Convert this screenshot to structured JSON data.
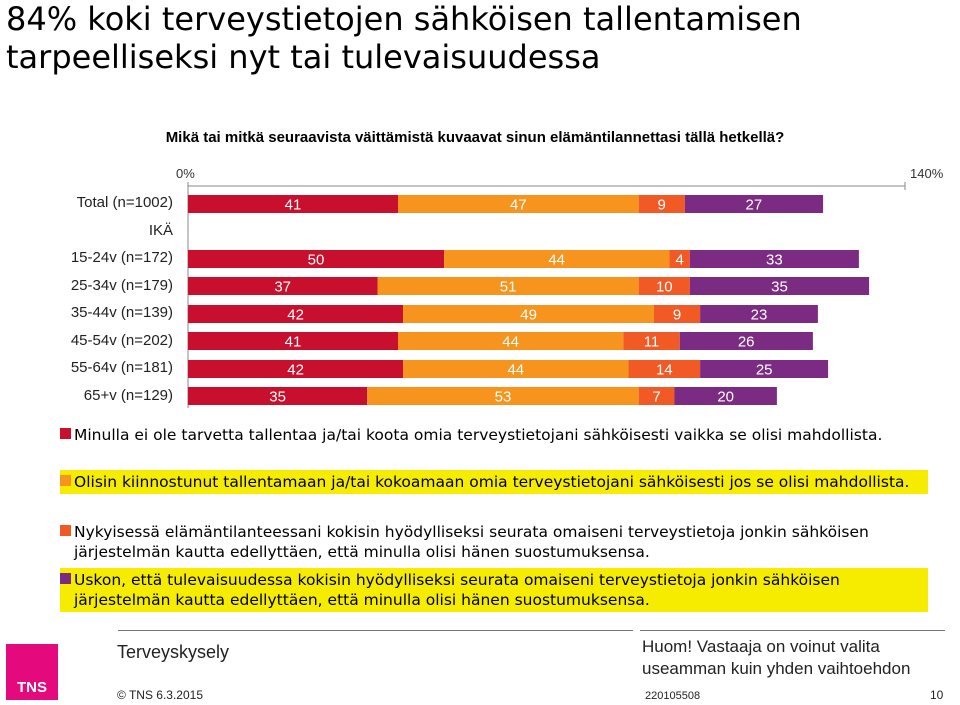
{
  "title": "84% koki terveystietojen sähköisen tallentamisen tarpeelliseksi nyt tai tulevaisuudessa",
  "question": "Mikä tai mitkä seuraavista väittämistä kuvaavat sinun elämäntilannettasi tällä hetkellä?",
  "chart_data": {
    "type": "bar",
    "orientation": "horizontal",
    "stacked": true,
    "axis_min_label": "0%",
    "axis_max_label": "140%",
    "xlim": [
      0,
      140
    ],
    "group_label": "IKÄ",
    "categories": [
      "Total (n=1002)",
      "15-24v (n=172)",
      "25-34v (n=179)",
      "35-44v (n=139)",
      "45-54v (n=202)",
      "55-64v (n=181)",
      "65+v (n=129)"
    ],
    "series": [
      {
        "name": "Minulla ei ole tarvetta tallentaa ja/tai koota omia terveystietojani sähköisesti vaikka se olisi mahdollista.",
        "color": "#c8102e",
        "values": [
          41,
          50,
          37,
          42,
          41,
          42,
          35
        ]
      },
      {
        "name": "Olisin kiinnostunut tallentamaan ja/tai kokoamaan omia terveystietojani sähköisesti jos se olisi mahdollista.",
        "color": "#f7941d",
        "values": [
          47,
          44,
          51,
          49,
          44,
          44,
          53
        ]
      },
      {
        "name": "Nykyisessä elämäntilanteessani kokisin hyödylliseksi seurata omaiseni terveystietoja jonkin sähköisen järjestelmän kautta edellyttäen, että minulla olisi hänen suostumuksensa.",
        "color": "#f15a24",
        "values": [
          9,
          4,
          10,
          9,
          11,
          14,
          7
        ]
      },
      {
        "name": "Uskon, että tulevaisuudessa kokisin hyödylliseksi seurata omaiseni terveystietoja jonkin sähköisen järjestelmän kautta edellyttäen, että minulla olisi hänen suostumuksensa.",
        "color": "#7b2c82",
        "values": [
          27,
          33,
          35,
          23,
          26,
          25,
          20
        ]
      }
    ],
    "legend_highlight": [
      false,
      true,
      false,
      true
    ],
    "highlight_color": "#f5ec00"
  },
  "footer": {
    "survey": "Terveyskysely",
    "note": "Huom! Vastaaja on voinut valita useamman kuin yhden vaihtoehdon",
    "copyright": "© TNS 6.3.2015",
    "project": "220105508",
    "page": "10",
    "logo": "TNS",
    "logo_color": "#e4097d"
  }
}
